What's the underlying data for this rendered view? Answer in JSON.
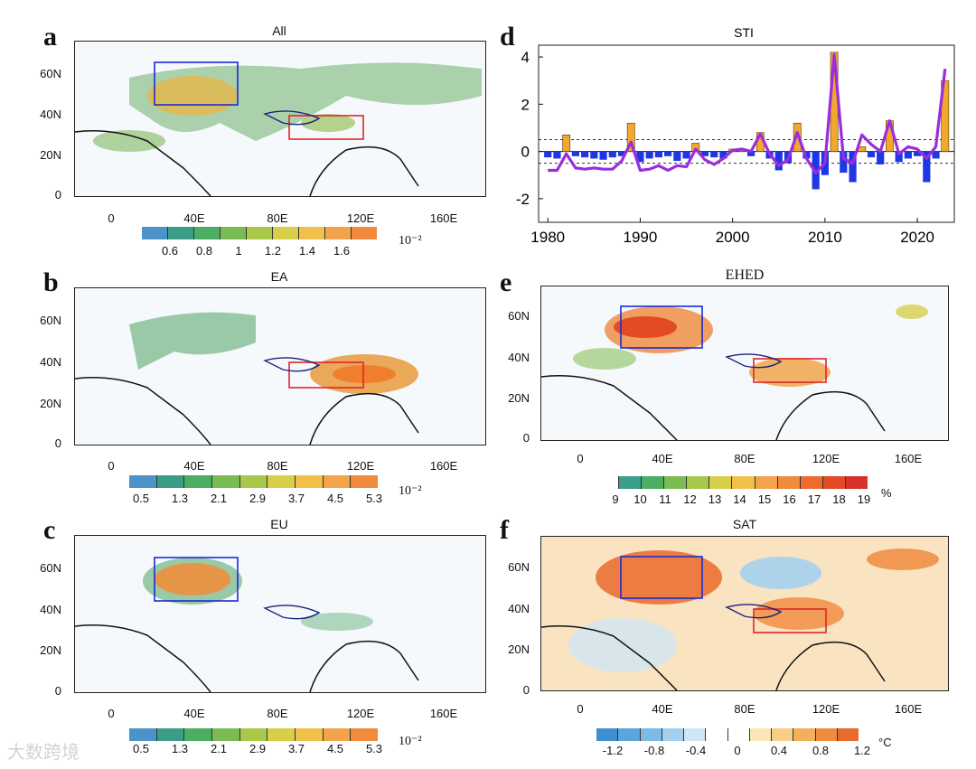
{
  "panels": {
    "a": {
      "label": "a",
      "title": "All"
    },
    "b": {
      "label": "b",
      "title": "EA"
    },
    "c": {
      "label": "c",
      "title": "EU"
    },
    "d": {
      "label": "d",
      "title": "STI"
    },
    "e": {
      "label": "e",
      "title": "EHED"
    },
    "f": {
      "label": "f",
      "title": "SAT"
    }
  },
  "map_axes": {
    "lat_ticks": [
      "0",
      "20N",
      "40N",
      "60N"
    ],
    "lon_ticks": [
      "0",
      "40E",
      "80E",
      "120E",
      "160E"
    ]
  },
  "colorbars": {
    "a": {
      "labels": [
        "0.6",
        "0.8",
        "1",
        "1.2",
        "1.4",
        "1.6"
      ],
      "unit": "10⁻²",
      "colors": [
        "#4c93c9",
        "#3a9e86",
        "#4cae62",
        "#7abc53",
        "#a8c84b",
        "#d7cf4a",
        "#f0c04a",
        "#f3a34a",
        "#f08a3c"
      ]
    },
    "b": {
      "labels": [
        "0.5",
        "1.3",
        "2.1",
        "2.9",
        "3.7",
        "4.5",
        "5.3"
      ],
      "unit": "10⁻²",
      "colors": [
        "#4c93c9",
        "#3a9e86",
        "#4cae62",
        "#7abc53",
        "#a8c84b",
        "#d7cf4a",
        "#f0c04a",
        "#f3a34a",
        "#f08a3c"
      ]
    },
    "c": {
      "labels": [
        "0.5",
        "1.3",
        "2.1",
        "2.9",
        "3.7",
        "4.5",
        "5.3"
      ],
      "unit": "10⁻²",
      "colors": [
        "#4c93c9",
        "#3a9e86",
        "#4cae62",
        "#7abc53",
        "#a8c84b",
        "#d7cf4a",
        "#f0c04a",
        "#f3a34a",
        "#f08a3c"
      ]
    },
    "e": {
      "labels": [
        "9",
        "10",
        "11",
        "12",
        "13",
        "14",
        "15",
        "16",
        "17",
        "18",
        "19"
      ],
      "unit": "%",
      "colors": [
        "#ffffff",
        "#3a9e8a",
        "#4cae62",
        "#7abc53",
        "#a8c84b",
        "#d7cf4a",
        "#f0c04a",
        "#f3a34a",
        "#f08a3c",
        "#ee6a2e",
        "#e34a26",
        "#d8302a"
      ]
    },
    "f": {
      "labels": [
        "-1.2",
        "-0.8",
        "-0.4",
        "0",
        "0.4",
        "0.8",
        "1.2"
      ],
      "unit": "°C",
      "colors": [
        "#3f8fd0",
        "#5aa5dc",
        "#7dbbe6",
        "#a4d0ef",
        "#cfe6f6",
        "#ffffff",
        "#ffffff",
        "#fbe6b8",
        "#f8cf86",
        "#f3b05c",
        "#ee8c3e",
        "#e86a2c"
      ]
    }
  },
  "chart_data": [
    {
      "type": "bar+line",
      "title": "STI",
      "xlabel": "",
      "ylabel": "",
      "x": [
        1980,
        1981,
        1982,
        1983,
        1984,
        1985,
        1986,
        1987,
        1988,
        1989,
        1990,
        1991,
        1992,
        1993,
        1994,
        1995,
        1996,
        1997,
        1998,
        1999,
        2000,
        2001,
        2002,
        2003,
        2004,
        2005,
        2006,
        2007,
        2008,
        2009,
        2010,
        2011,
        2012,
        2013,
        2014,
        2015,
        2016,
        2017,
        2018,
        2019,
        2020,
        2021,
        2022,
        2023
      ],
      "xticks": [
        "1980",
        "1990",
        "2000",
        "2010",
        "2020"
      ],
      "xlim": [
        1979,
        2024
      ],
      "yticks": [
        "-2",
        "0",
        "2",
        "4"
      ],
      "ylim": [
        -3,
        4.5
      ],
      "threshold_lines": [
        0.5,
        -0.5
      ],
      "series": [
        {
          "name": "bars",
          "values": [
            -0.25,
            -0.3,
            0.7,
            -0.2,
            -0.25,
            -0.3,
            -0.35,
            -0.25,
            -0.2,
            1.2,
            -0.45,
            -0.3,
            -0.25,
            -0.2,
            -0.4,
            -0.3,
            0.35,
            -0.2,
            -0.25,
            -0.3,
            0.1,
            0.1,
            -0.2,
            0.8,
            -0.3,
            -0.8,
            -0.5,
            1.2,
            -0.3,
            -1.6,
            -1.0,
            4.2,
            -0.9,
            -1.3,
            0.2,
            -0.25,
            -0.55,
            1.3,
            -0.45,
            -0.3,
            -0.2,
            -1.3,
            -0.3,
            3.0
          ],
          "pos_color": "#f2a72e",
          "neg_color": "#1e36e6"
        },
        {
          "name": "line",
          "values": [
            -0.8,
            -0.8,
            -0.1,
            -0.7,
            -0.75,
            -0.7,
            -0.75,
            -0.75,
            -0.4,
            0.4,
            -0.8,
            -0.75,
            -0.6,
            -0.8,
            -0.6,
            -0.65,
            0.1,
            -0.35,
            -0.55,
            -0.3,
            0.05,
            0.1,
            0.0,
            0.75,
            -0.1,
            -0.6,
            -0.35,
            0.8,
            -0.3,
            -0.9,
            -0.5,
            4.1,
            -0.3,
            -0.5,
            0.7,
            0.3,
            0.0,
            1.3,
            -0.1,
            0.2,
            0.1,
            -0.3,
            0.2,
            3.5
          ],
          "color": "#9b2ddb"
        }
      ]
    }
  ],
  "watermark": "大数跨境"
}
